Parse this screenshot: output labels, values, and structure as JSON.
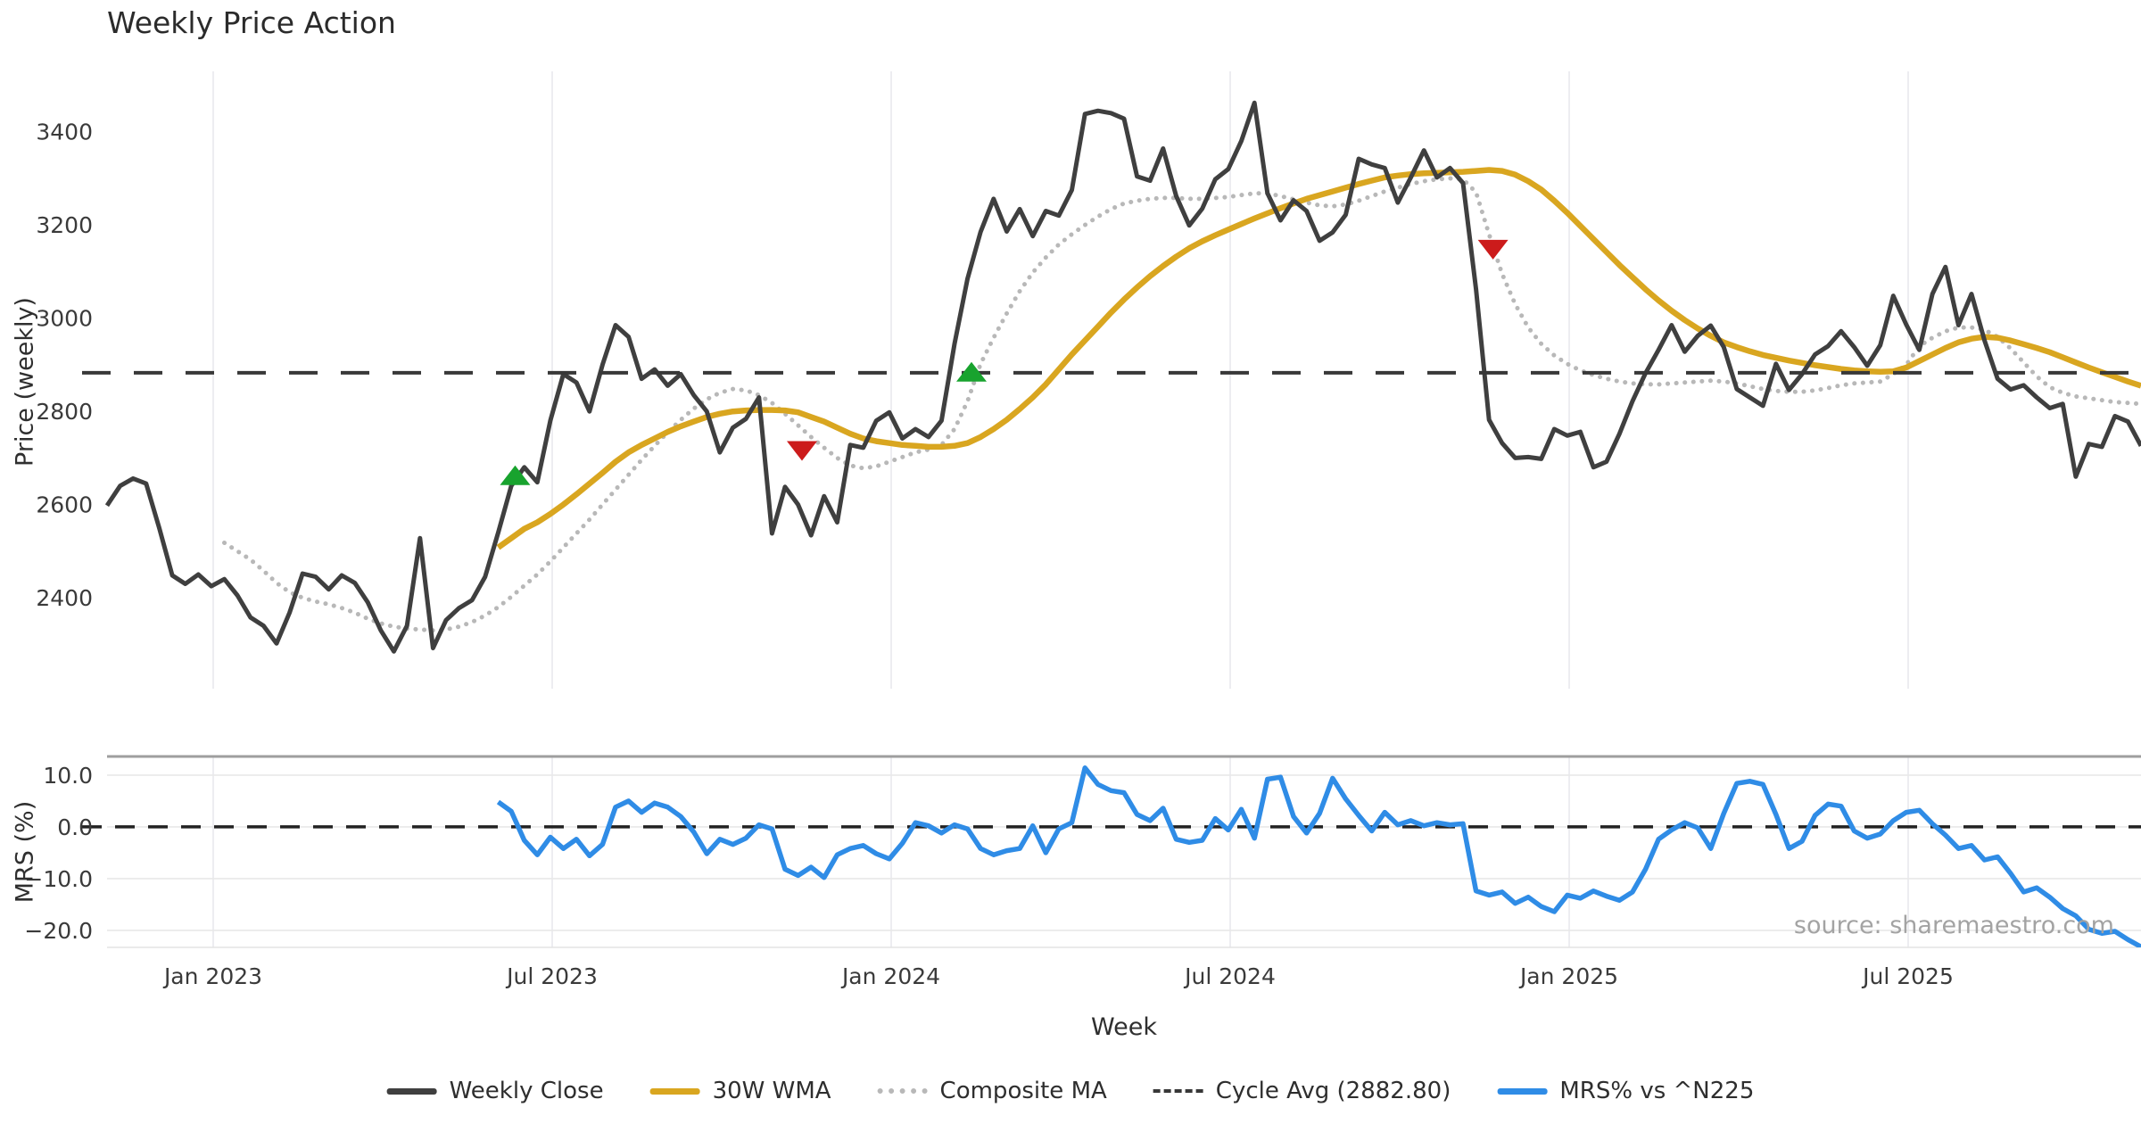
{
  "title": "Weekly Price Action",
  "source_text": "source: sharemaestro.com",
  "legend": [
    {
      "id": "weekly_close",
      "label": "Weekly Close",
      "color": "#3f3f3f",
      "style": "solid"
    },
    {
      "id": "wma30",
      "label": "30W WMA",
      "color": "#d9a620",
      "style": "solid"
    },
    {
      "id": "composite_ma",
      "label": "Composite MA",
      "color": "#b8b8b8",
      "style": "dotted"
    },
    {
      "id": "cycle_avg",
      "label": "Cycle Avg (2882.80)",
      "color": "#383838",
      "style": "dashed"
    },
    {
      "id": "mrs",
      "label": "MRS% vs ^N225",
      "color": "#2f8ce6",
      "style": "solid"
    }
  ],
  "colors": {
    "grid_vertical": "#ededf1",
    "grid_horizontal": "#e8e8e8",
    "panel_spine_top": "#9e9e9e",
    "panel_spine_bottom": "#e3e3e3",
    "tick_text": "#3a3a3a",
    "buy_marker": "#18a32e",
    "sell_marker": "#cc1b1b"
  },
  "chart_data": {
    "type": "line",
    "x_axis": {
      "label": "Week",
      "unit": "week_index",
      "total_weeks": 156,
      "ticks": [
        {
          "week": 8.14,
          "label": "Jan 2023"
        },
        {
          "week": 34.14,
          "label": "Jul 2023"
        },
        {
          "week": 60.14,
          "label": "Jan 2024"
        },
        {
          "week": 86.14,
          "label": "Jul 2024"
        },
        {
          "week": 112.14,
          "label": "Jan 2025"
        },
        {
          "week": 138.14,
          "label": "Jul 2025"
        }
      ]
    },
    "price_panel": {
      "ylabel": "Price (weekly)",
      "ylim": [
        2205,
        3520
      ],
      "ticks": [
        {
          "v": 3400,
          "label": "3400"
        },
        {
          "v": 3200,
          "label": "3200"
        },
        {
          "v": 3000,
          "label": "3000"
        },
        {
          "v": 2800,
          "label": "2800"
        },
        {
          "v": 2600,
          "label": "2600"
        },
        {
          "v": 2400,
          "label": "2400"
        }
      ],
      "cycle_avg": {
        "label": "Cycle Avg (2882.80)",
        "value": 2882.8,
        "color": "#383838"
      },
      "series": [
        {
          "id": "composite_ma",
          "name": "Composite MA",
          "color": "#b8b8b8",
          "style": "dotted",
          "width": 5,
          "start_week": 9,
          "values": [
            2518,
            2500,
            2482,
            2458,
            2432,
            2412,
            2400,
            2392,
            2386,
            2378,
            2368,
            2355,
            2345,
            2338,
            2334,
            2332,
            2330,
            2332,
            2338,
            2348,
            2362,
            2380,
            2402,
            2426,
            2450,
            2478,
            2508,
            2538,
            2568,
            2600,
            2632,
            2664,
            2696,
            2726,
            2755,
            2782,
            2806,
            2826,
            2840,
            2848,
            2845,
            2835,
            2818,
            2795,
            2770,
            2745,
            2722,
            2700,
            2684,
            2678,
            2682,
            2692,
            2702,
            2712,
            2718,
            2728,
            2762,
            2822,
            2902,
            2958,
            3010,
            3058,
            3098,
            3130,
            3158,
            3180,
            3200,
            3218,
            3234,
            3246,
            3252,
            3256,
            3258,
            3258,
            3256,
            3256,
            3258,
            3260,
            3264,
            3268,
            3268,
            3262,
            3255,
            3248,
            3242,
            3240,
            3244,
            3252,
            3262,
            3272,
            3280,
            3288,
            3294,
            3298,
            3300,
            3298,
            3270,
            3180,
            3095,
            3030,
            2980,
            2945,
            2920,
            2902,
            2888,
            2878,
            2870,
            2864,
            2860,
            2858,
            2858,
            2860,
            2862,
            2864,
            2866,
            2864,
            2860,
            2854,
            2848,
            2844,
            2842,
            2842,
            2845,
            2850,
            2856,
            2860,
            2862,
            2864,
            2880,
            2900,
            2940,
            2958,
            2972,
            2980,
            2980,
            2975,
            2960,
            2935,
            2905,
            2875,
            2852,
            2840,
            2832,
            2828,
            2824,
            2820,
            2818,
            2816
          ]
        },
        {
          "id": "wma30",
          "name": "30W WMA",
          "color": "#d9a620",
          "style": "solid",
          "width": 6.5,
          "start_week": 30,
          "values": [
            2508,
            2528,
            2548,
            2562,
            2580,
            2600,
            2622,
            2645,
            2668,
            2692,
            2712,
            2728,
            2742,
            2756,
            2768,
            2778,
            2788,
            2795,
            2800,
            2802,
            2803,
            2803,
            2802,
            2798,
            2788,
            2778,
            2765,
            2752,
            2742,
            2736,
            2732,
            2728,
            2726,
            2724,
            2724,
            2726,
            2732,
            2745,
            2762,
            2782,
            2805,
            2830,
            2858,
            2890,
            2922,
            2952,
            2982,
            3012,
            3040,
            3066,
            3090,
            3112,
            3132,
            3150,
            3165,
            3178,
            3190,
            3202,
            3214,
            3225,
            3236,
            3246,
            3256,
            3264,
            3272,
            3280,
            3288,
            3295,
            3302,
            3306,
            3309,
            3311,
            3312,
            3313,
            3314,
            3316,
            3318,
            3316,
            3308,
            3294,
            3276,
            3252,
            3226,
            3198,
            3170,
            3142,
            3114,
            3088,
            3062,
            3038,
            3016,
            2996,
            2978,
            2962,
            2948,
            2938,
            2929,
            2921,
            2915,
            2909,
            2904,
            2899,
            2895,
            2891,
            2888,
            2886,
            2885,
            2886,
            2894,
            2908,
            2922,
            2936,
            2948,
            2956,
            2960,
            2958,
            2952,
            2944,
            2936,
            2927,
            2916,
            2905,
            2894,
            2884,
            2874,
            2864,
            2855
          ]
        },
        {
          "id": "weekly_close",
          "name": "Weekly Close",
          "color": "#3f3f3f",
          "style": "solid",
          "width": 5,
          "start_week": 0,
          "values": [
            2598,
            2640,
            2656,
            2645,
            2550,
            2448,
            2430,
            2450,
            2425,
            2440,
            2405,
            2358,
            2340,
            2302,
            2368,
            2452,
            2445,
            2418,
            2448,
            2432,
            2390,
            2330,
            2285,
            2340,
            2528,
            2292,
            2352,
            2378,
            2395,
            2445,
            2540,
            2640,
            2680,
            2648,
            2780,
            2880,
            2862,
            2800,
            2900,
            2985,
            2960,
            2870,
            2890,
            2855,
            2880,
            2835,
            2800,
            2712,
            2765,
            2784,
            2830,
            2538,
            2638,
            2600,
            2534,
            2618,
            2562,
            2728,
            2722,
            2780,
            2798,
            2742,
            2762,
            2745,
            2780,
            2945,
            3085,
            3185,
            3256,
            3186,
            3234,
            3176,
            3230,
            3220,
            3275,
            3438,
            3445,
            3440,
            3428,
            3304,
            3295,
            3364,
            3262,
            3199,
            3235,
            3298,
            3320,
            3380,
            3462,
            3268,
            3210,
            3253,
            3230,
            3166,
            3184,
            3222,
            3342,
            3330,
            3322,
            3248,
            3302,
            3360,
            3302,
            3322,
            3290,
            3062,
            2782,
            2732,
            2700,
            2702,
            2698,
            2762,
            2748,
            2756,
            2680,
            2692,
            2752,
            2822,
            2882,
            2932,
            2985,
            2928,
            2962,
            2984,
            2938,
            2848,
            2830,
            2812,
            2902,
            2846,
            2880,
            2922,
            2940,
            2972,
            2938,
            2898,
            2942,
            3048,
            2986,
            2932,
            3052,
            3110,
            2985,
            3052,
            2952,
            2870,
            2847,
            2856,
            2830,
            2807,
            2816,
            2660,
            2730,
            2724,
            2790,
            2778,
            2726
          ]
        }
      ],
      "signals": {
        "buy_color": "#18a32e",
        "sell_color": "#cc1b1b",
        "buy": [
          {
            "week": 31.3,
            "price": 2663
          },
          {
            "week": 66.3,
            "price": 2885
          }
        ],
        "sell": [
          {
            "week": 53.3,
            "price": 2715
          },
          {
            "week": 106.3,
            "price": 3147
          }
        ]
      }
    },
    "mrs_panel": {
      "ylabel": "MRS (%)",
      "ylim": [
        13.6,
        -23.3
      ],
      "ticks": [
        {
          "v": 10,
          "label": "10.0"
        },
        {
          "v": 0,
          "label": "0.0"
        },
        {
          "v": -10,
          "label": "−10.0"
        },
        {
          "v": -20,
          "label": "−20.0"
        }
      ],
      "zero_line": {
        "value": 0,
        "color": "#222222"
      },
      "series": [
        {
          "id": "mrs",
          "name": "MRS% vs ^N225",
          "color": "#2f8ce6",
          "style": "solid",
          "width": 5.5,
          "start_week": 30,
          "values": [
            4.8,
            3.0,
            -2.6,
            -5.4,
            -2.0,
            -4.2,
            -2.4,
            -5.6,
            -3.4,
            3.8,
            5.0,
            2.8,
            4.6,
            3.8,
            2.0,
            -1.0,
            -5.2,
            -2.4,
            -3.4,
            -2.2,
            0.4,
            -0.4,
            -8.2,
            -9.4,
            -7.8,
            -9.8,
            -5.4,
            -4.2,
            -3.6,
            -5.2,
            -6.2,
            -3.2,
            0.8,
            0.2,
            -1.2,
            0.4,
            -0.4,
            -4.2,
            -5.4,
            -4.6,
            -4.2,
            0.2,
            -5.0,
            -0.4,
            0.8,
            11.4,
            8.2,
            7.0,
            6.6,
            2.4,
            1.2,
            3.6,
            -2.4,
            -3.0,
            -2.6,
            1.6,
            -0.6,
            3.4,
            -2.2,
            9.2,
            9.6,
            2.0,
            -1.2,
            2.6,
            9.4,
            5.4,
            2.2,
            -0.8,
            2.8,
            0.4,
            1.2,
            0.2,
            0.8,
            0.4,
            0.6,
            -12.4,
            -13.2,
            -12.6,
            -14.8,
            -13.6,
            -15.4,
            -16.4,
            -13.2,
            -13.8,
            -12.4,
            -13.4,
            -14.2,
            -12.6,
            -8.2,
            -2.4,
            -0.6,
            0.8,
            -0.2,
            -4.2,
            2.6,
            8.4,
            8.8,
            8.2,
            2.4,
            -4.2,
            -2.8,
            2.2,
            4.4,
            4.0,
            -0.8,
            -2.2,
            -1.4,
            1.2,
            2.8,
            3.2,
            0.6,
            -1.6,
            -4.2,
            -3.6,
            -6.4,
            -5.8,
            -9.0,
            -12.6,
            -11.8,
            -13.6,
            -15.8,
            -17.2,
            -19.8,
            -20.6,
            -20.2,
            -21.8,
            -23.2
          ]
        }
      ]
    }
  }
}
